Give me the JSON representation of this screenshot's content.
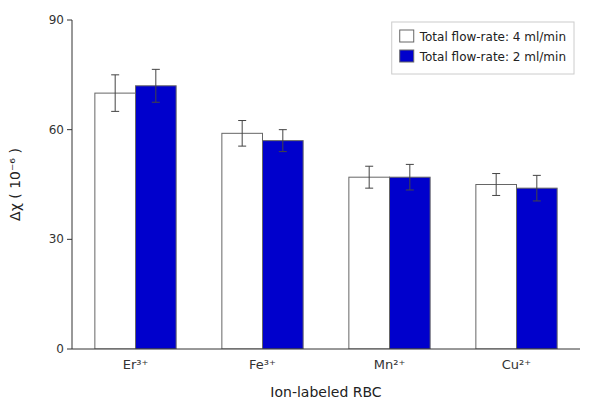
{
  "chart_data": {
    "type": "bar",
    "categories": [
      "Er³⁺",
      "Fe³⁺",
      "Mn²⁺",
      "Cu²⁺"
    ],
    "series": [
      {
        "name": "Total flow-rate: 4 ml/min",
        "color": "white",
        "values": [
          70.0,
          59.0,
          47.0,
          45.0
        ],
        "errors": [
          5.0,
          3.5,
          3.0,
          3.0
        ]
      },
      {
        "name": "Total flow-rate: 2 ml/min",
        "color": "#0000CC",
        "values": [
          72.0,
          57.0,
          47.0,
          44.0
        ],
        "errors": [
          4.5,
          3.0,
          3.5,
          3.5
        ]
      }
    ],
    "xlabel": "Ion-labeled RBC",
    "ylabel": "Δχ  ( 10⁻⁶ )",
    "ylim": [
      0,
      90
    ],
    "yticks": [
      0,
      30,
      60,
      90
    ],
    "grid": false,
    "legend": "upper-right"
  }
}
